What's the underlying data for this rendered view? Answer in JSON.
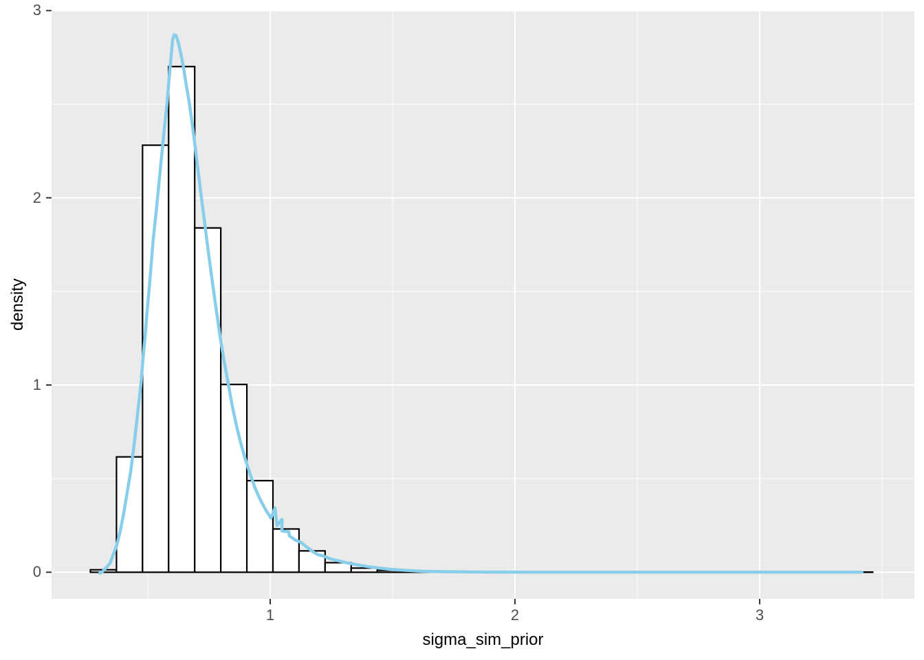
{
  "chart_data": {
    "type": "bar",
    "subtype": "histogram-with-density-overlay",
    "title": "",
    "xlabel": "sigma_sim_prior",
    "ylabel": "density",
    "legend_position": "none",
    "grid": true,
    "xlim": [
      0.1067,
      3.6322
    ],
    "ylim": [
      -0.142,
      3.0015
    ],
    "x_major_ticks": [
      1,
      2,
      3
    ],
    "x_minor_ticks": [
      0.5,
      1.5,
      2.5,
      3.5
    ],
    "y_major_ticks": [
      0,
      1,
      2,
      3
    ],
    "y_minor_ticks": [
      0.5,
      1.5,
      2.5
    ],
    "histogram": {
      "bin_start": 0.2654,
      "bin_width": 0.10655,
      "heights": [
        0.013,
        0.616,
        2.281,
        2.701,
        1.839,
        1.003,
        0.489,
        0.231,
        0.114,
        0.051,
        0.022,
        0.01,
        0.004,
        0.002,
        0.001,
        0.001,
        0.001,
        0,
        0,
        0,
        0,
        0,
        0,
        0,
        0,
        0,
        0,
        0,
        0,
        0.001
      ]
    },
    "density_curve": {
      "points": [
        [
          0.303,
          -0.005
        ],
        [
          0.312,
          0.0
        ],
        [
          0.331,
          0.025
        ],
        [
          0.346,
          0.05
        ],
        [
          0.36,
          0.098
        ],
        [
          0.374,
          0.149
        ],
        [
          0.388,
          0.223
        ],
        [
          0.402,
          0.318
        ],
        [
          0.416,
          0.429
        ],
        [
          0.43,
          0.539
        ],
        [
          0.444,
          0.682
        ],
        [
          0.458,
          0.847
        ],
        [
          0.472,
          1.005
        ],
        [
          0.48,
          1.134
        ],
        [
          0.489,
          1.262
        ],
        [
          0.497,
          1.391
        ],
        [
          0.506,
          1.519
        ],
        [
          0.514,
          1.648
        ],
        [
          0.522,
          1.776
        ],
        [
          0.534,
          1.923
        ],
        [
          0.545,
          2.07
        ],
        [
          0.556,
          2.217
        ],
        [
          0.567,
          2.364
        ],
        [
          0.579,
          2.511
        ],
        [
          0.587,
          2.639
        ],
        [
          0.596,
          2.768
        ],
        [
          0.601,
          2.841
        ],
        [
          0.607,
          2.871
        ],
        [
          0.615,
          2.867
        ],
        [
          0.624,
          2.834
        ],
        [
          0.635,
          2.768
        ],
        [
          0.646,
          2.694
        ],
        [
          0.657,
          2.603
        ],
        [
          0.669,
          2.511
        ],
        [
          0.68,
          2.408
        ],
        [
          0.691,
          2.298
        ],
        [
          0.702,
          2.18
        ],
        [
          0.713,
          2.063
        ],
        [
          0.725,
          1.942
        ],
        [
          0.739,
          1.795
        ],
        [
          0.753,
          1.655
        ],
        [
          0.767,
          1.519
        ],
        [
          0.781,
          1.391
        ],
        [
          0.795,
          1.262
        ],
        [
          0.812,
          1.126
        ],
        [
          0.829,
          1.005
        ],
        [
          0.845,
          0.888
        ],
        [
          0.862,
          0.785
        ],
        [
          0.879,
          0.693
        ],
        [
          0.899,
          0.601
        ],
        [
          0.919,
          0.52
        ],
        [
          0.938,
          0.451
        ],
        [
          0.958,
          0.392
        ],
        [
          0.98,
          0.337
        ],
        [
          1.003,
          0.289
        ],
        [
          1.02,
          0.344
        ],
        [
          1.02,
          0.344
        ],
        [
          1.028,
          0.249
        ],
        [
          1.048,
          0.282
        ],
        [
          1.048,
          0.22
        ],
        [
          1.079,
          0.194
        ],
        [
          1.076,
          0.216
        ],
        [
          1.104,
          0.171
        ],
        [
          1.126,
          0.16
        ],
        [
          1.149,
          0.135
        ],
        [
          1.171,
          0.113
        ],
        [
          1.194,
          0.094
        ],
        [
          1.216,
          0.087
        ],
        [
          1.244,
          0.072
        ],
        [
          1.278,
          0.061
        ],
        [
          1.315,
          0.05
        ],
        [
          1.357,
          0.039
        ],
        [
          1.399,
          0.03
        ],
        [
          1.441,
          0.023
        ],
        [
          1.497,
          0.015
        ],
        [
          1.553,
          0.01
        ],
        [
          1.624,
          0.005
        ],
        [
          1.708,
          0.003
        ],
        [
          1.862,
          0.001
        ],
        [
          2.143,
          0.0
        ],
        [
          2.5,
          0.0
        ],
        [
          2.9,
          0.0
        ],
        [
          3.2,
          0.0
        ],
        [
          3.418,
          0.0
        ]
      ]
    },
    "colors": {
      "panel_background": "#EBEBEB",
      "gridline": "#FFFFFF",
      "bar_fill": "#FFFFFF",
      "bar_stroke": "#000000",
      "density_line": "#87CEEB",
      "tick_label": "#4D4D4D",
      "axis_title": "#000000",
      "tick_mark": "#333333"
    }
  }
}
